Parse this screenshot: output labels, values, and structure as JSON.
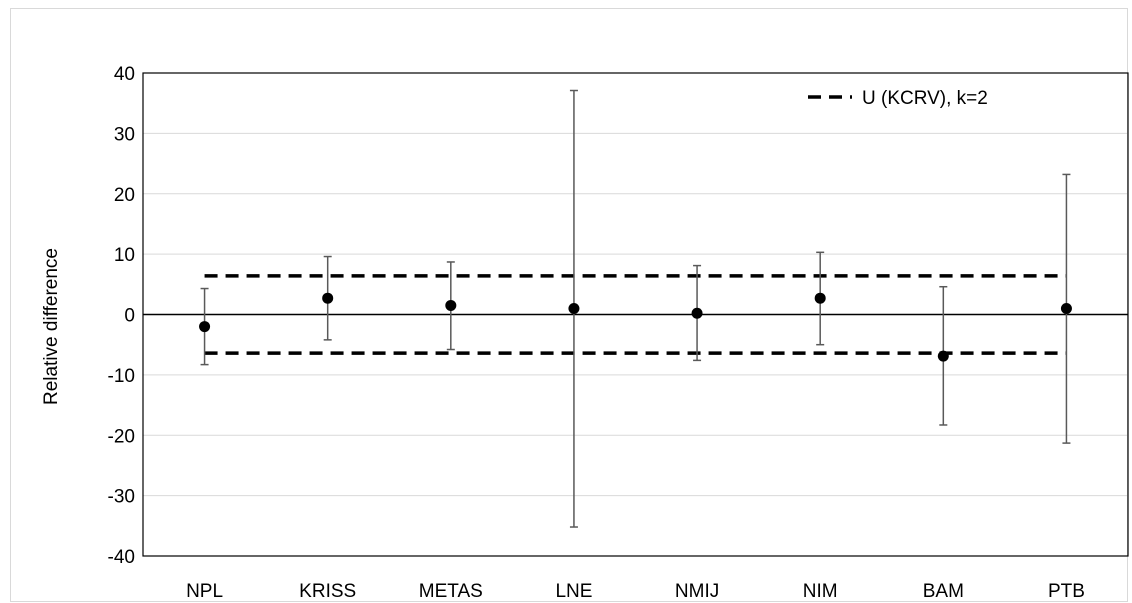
{
  "chart_data": {
    "type": "scatter",
    "title": "",
    "xlabel": "",
    "ylabel": "Relative difference",
    "ylim": [
      -40,
      40
    ],
    "yticks": [
      -40,
      -30,
      -20,
      -10,
      0,
      10,
      20,
      30,
      40
    ],
    "grid": "horizontal",
    "legend_position": "top-right",
    "categories": [
      "NPL",
      "KRISS",
      "METAS",
      "LNE",
      "NMIJ",
      "NIM",
      "BAM",
      "PTB"
    ],
    "series": [
      {
        "values": [
          -2.0,
          2.7,
          1.5,
          1.0,
          0.2,
          2.7,
          -6.9,
          1.0
        ],
        "error_low": [
          -8.3,
          -4.2,
          -5.8,
          -35.2,
          -7.6,
          -5.0,
          -18.3,
          -21.3
        ],
        "error_high": [
          4.3,
          9.6,
          8.7,
          37.1,
          8.1,
          10.3,
          4.6,
          23.2
        ]
      }
    ],
    "reference_lines": [
      {
        "name": "U (KCRV), k=2",
        "values": [
          6.4,
          -6.4
        ]
      }
    ],
    "colors": {
      "points": "#000000",
      "errorbars": "#595959",
      "grid": "#d9d9d9",
      "axis": "#000000"
    }
  }
}
